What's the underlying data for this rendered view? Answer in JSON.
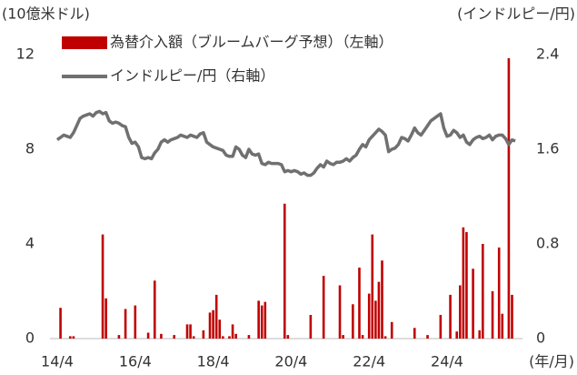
{
  "chart_data": {
    "type": "bar",
    "y_label": "(10億米ドル)",
    "y2_label": "(インドルピー/円)",
    "x_label": "(年/月)",
    "categories": [
      "14/4",
      null,
      null,
      null,
      null,
      null,
      null,
      null,
      null,
      null,
      null,
      null,
      null,
      null,
      null,
      null,
      null,
      null,
      null,
      null,
      null,
      null,
      null,
      null,
      "16/4",
      null,
      null,
      null,
      null,
      null,
      null,
      null,
      null,
      null,
      null,
      null,
      null,
      null,
      null,
      null,
      null,
      null,
      null,
      null,
      null,
      null,
      null,
      null,
      "18/4",
      null,
      null,
      null,
      null,
      null,
      null,
      null,
      null,
      null,
      null,
      null,
      null,
      null,
      null,
      null,
      null,
      null,
      null,
      null,
      null,
      null,
      null,
      null,
      "20/4",
      null,
      null,
      null,
      null,
      null,
      null,
      null,
      null,
      null,
      null,
      null,
      null,
      null,
      null,
      null,
      null,
      null,
      null,
      null,
      null,
      null,
      null,
      null,
      "22/4",
      null,
      null,
      null,
      null,
      null,
      null,
      null,
      null,
      null,
      null,
      null,
      null,
      null,
      null,
      null,
      null,
      null,
      null,
      null,
      null,
      null,
      null,
      null,
      "24/4",
      null,
      null,
      null,
      null,
      null,
      null,
      null,
      null,
      null,
      null,
      null,
      null,
      null,
      null,
      null,
      null,
      null,
      null,
      null,
      null,
      null
    ],
    "series": [
      {
        "name": "為替介入額（ブルームバーグ予想）（左軸）",
        "type": "bar",
        "color": "#c00000",
        "values": [
          0,
          1.3,
          0,
          0,
          0.1,
          0.1,
          0,
          0,
          0,
          0,
          0,
          0,
          0,
          0,
          4.4,
          1.7,
          0,
          0,
          0,
          0.15,
          0,
          1.25,
          0,
          0,
          1.4,
          0,
          0,
          0,
          0.25,
          0,
          2.45,
          0,
          0.2,
          0,
          0,
          0,
          0.15,
          0,
          0,
          0,
          0.6,
          0.6,
          0.1,
          0,
          0,
          0.35,
          0,
          1.1,
          1.2,
          1.85,
          0.8,
          0.1,
          0,
          0.1,
          0.6,
          0.2,
          0,
          0,
          0,
          0.15,
          0,
          0,
          1.6,
          1.4,
          1.55,
          0,
          0,
          0,
          0,
          0,
          5.7,
          0.15,
          0,
          0,
          0,
          0,
          0,
          0,
          1.0,
          0,
          0,
          0,
          2.65,
          0,
          0,
          0,
          0,
          2.25,
          0.15,
          0,
          0,
          1.45,
          0,
          3.0,
          0.15,
          0,
          1.9,
          4.4,
          1.6,
          2.4,
          3.3,
          0.1,
          0,
          0.7,
          0,
          0,
          0,
          0,
          0,
          0,
          0.45,
          0,
          0,
          0,
          0.15,
          0,
          0,
          0,
          1.0,
          0,
          0,
          1.85,
          0,
          0.3,
          2.25,
          4.7,
          4.5,
          0,
          2.95,
          0,
          0.35,
          4.0,
          0,
          0,
          2.0,
          0,
          3.85,
          1.05,
          0,
          11.85,
          1.85,
          0
        ]
      },
      {
        "name": "インドルピー/円（右軸）",
        "type": "line",
        "axis": "y2",
        "color": "#707070",
        "values": [
          1.68,
          1.7,
          1.72,
          1.71,
          1.7,
          1.74,
          1.8,
          1.86,
          1.88,
          1.89,
          1.9,
          1.88,
          1.91,
          1.92,
          1.9,
          1.91,
          1.84,
          1.82,
          1.83,
          1.82,
          1.8,
          1.79,
          1.7,
          1.65,
          1.66,
          1.62,
          1.53,
          1.52,
          1.53,
          1.52,
          1.57,
          1.6,
          1.66,
          1.68,
          1.66,
          1.68,
          1.69,
          1.7,
          1.72,
          1.71,
          1.7,
          1.72,
          1.71,
          1.7,
          1.73,
          1.74,
          1.66,
          1.64,
          1.62,
          1.61,
          1.6,
          1.59,
          1.55,
          1.54,
          1.54,
          1.62,
          1.6,
          1.55,
          1.53,
          1.6,
          1.56,
          1.55,
          1.56,
          1.48,
          1.47,
          1.49,
          1.48,
          1.48,
          1.48,
          1.47,
          1.41,
          1.42,
          1.41,
          1.42,
          1.41,
          1.39,
          1.4,
          1.38,
          1.38,
          1.4,
          1.44,
          1.47,
          1.45,
          1.5,
          1.48,
          1.47,
          1.49,
          1.49,
          1.5,
          1.52,
          1.5,
          1.53,
          1.55,
          1.6,
          1.64,
          1.62,
          1.68,
          1.71,
          1.74,
          1.77,
          1.75,
          1.72,
          1.58,
          1.6,
          1.61,
          1.64,
          1.7,
          1.69,
          1.67,
          1.72,
          1.78,
          1.74,
          1.72,
          1.76,
          1.8,
          1.84,
          1.86,
          1.88,
          1.9,
          1.78,
          1.71,
          1.72,
          1.76,
          1.74,
          1.7,
          1.72,
          1.66,
          1.64,
          1.68,
          1.7,
          1.71,
          1.69,
          1.7,
          1.72,
          1.68,
          1.71,
          1.72,
          1.72,
          1.69,
          1.64,
          1.68,
          1.67
        ]
      }
    ],
    "ylim": [
      0,
      12
    ],
    "yticks": [
      0,
      4,
      8,
      12
    ],
    "y2lim": [
      0,
      2.4
    ],
    "y2ticks": [
      0,
      0.8,
      1.6,
      2.4
    ],
    "legend": "upper left"
  }
}
